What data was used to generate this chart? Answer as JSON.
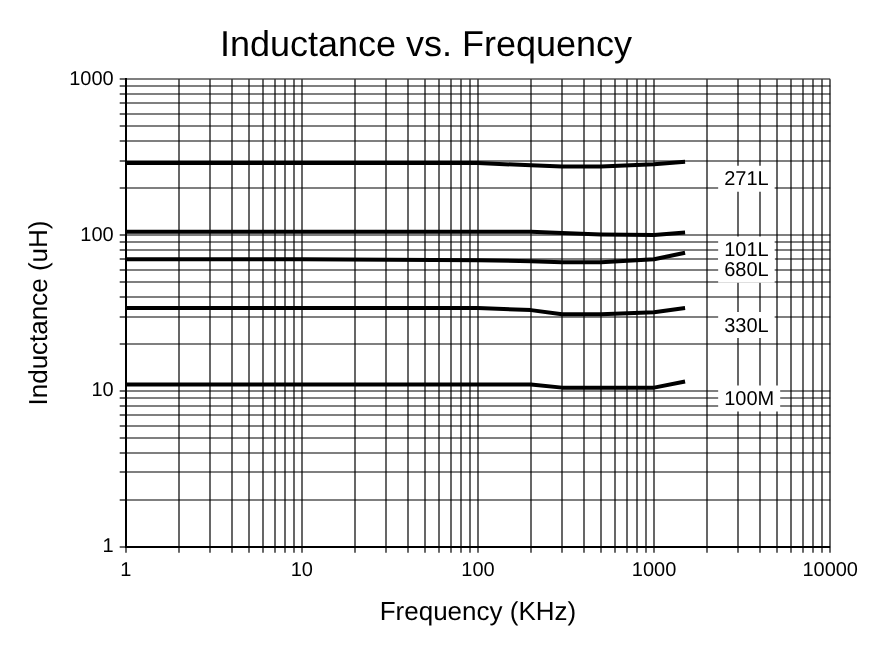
{
  "chart_data": {
    "type": "line",
    "title": "Inductance vs. Frequency",
    "xlabel": "Frequency (KHz)",
    "ylabel": "Inductance (uH)",
    "log": "xy",
    "grid": true,
    "legend": false,
    "marker": "none",
    "line_style": "solid",
    "x": [
      1,
      10,
      100,
      200,
      300,
      500,
      1000,
      1500
    ],
    "xlim": [
      1,
      10000
    ],
    "xticks": [
      1,
      {
        "value": 2,
        "label": null
      },
      {
        "value": 3,
        "label": null
      },
      {
        "value": 4,
        "label": null
      },
      {
        "value": 5,
        "label": null
      },
      {
        "value": 6,
        "label": null
      },
      {
        "value": 7,
        "label": null
      },
      {
        "value": 8,
        "label": null
      },
      {
        "value": 9,
        "label": null
      },
      10,
      {
        "value": 20,
        "label": null
      },
      {
        "value": 30,
        "label": null
      },
      {
        "value": 40,
        "label": null
      },
      {
        "value": 50,
        "label": null
      },
      {
        "value": 60,
        "label": null
      },
      {
        "value": 70,
        "label": null
      },
      {
        "value": 80,
        "label": null
      },
      {
        "value": 90,
        "label": null
      },
      100,
      {
        "value": 200,
        "label": null
      },
      {
        "value": 300,
        "label": null
      },
      {
        "value": 400,
        "label": null
      },
      {
        "value": 500,
        "label": null
      },
      {
        "value": 600,
        "label": null
      },
      {
        "value": 700,
        "label": null
      },
      {
        "value": 800,
        "label": null
      },
      {
        "value": 900,
        "label": null
      },
      1000,
      {
        "value": 2000,
        "label": null
      },
      {
        "value": 3000,
        "label": null
      },
      {
        "value": 4000,
        "label": null
      },
      {
        "value": 5000,
        "label": null
      },
      {
        "value": 6000,
        "label": null
      },
      {
        "value": 7000,
        "label": null
      },
      {
        "value": 8000,
        "label": null
      },
      {
        "value": 9000,
        "label": null
      },
      10000
    ],
    "ylim": [
      1,
      1000
    ],
    "yticks": [
      1,
      {
        "value": 2,
        "label": null
      },
      {
        "value": 3,
        "label": null
      },
      {
        "value": 4,
        "label": null
      },
      {
        "value": 5,
        "label": null
      },
      {
        "value": 6,
        "label": null
      },
      {
        "value": 7,
        "label": null
      },
      {
        "value": 8,
        "label": null
      },
      {
        "value": 9,
        "label": null
      },
      10,
      {
        "value": 20,
        "label": null
      },
      {
        "value": 30,
        "label": null
      },
      {
        "value": 40,
        "label": null
      },
      {
        "value": 50,
        "label": null
      },
      {
        "value": 60,
        "label": null
      },
      {
        "value": 70,
        "label": null
      },
      {
        "value": 80,
        "label": null
      },
      {
        "value": 90,
        "label": null
      },
      100,
      {
        "value": 200,
        "label": null
      },
      {
        "value": 300,
        "label": null
      },
      {
        "value": 400,
        "label": null
      },
      {
        "value": 500,
        "label": null
      },
      {
        "value": 600,
        "label": null
      },
      {
        "value": 700,
        "label": null
      },
      {
        "value": 800,
        "label": null
      },
      {
        "value": 900,
        "label": null
      },
      1000
    ],
    "series": [
      {
        "name": "271L",
        "color": "#000000",
        "values": [
          290,
          290,
          290,
          280,
          275,
          275,
          285,
          295
        ]
      },
      {
        "name": "101L",
        "color": "#000000",
        "values": [
          105,
          105,
          105,
          105,
          103,
          101,
          100,
          104
        ]
      },
      {
        "name": "680L",
        "color": "#000000",
        "values": [
          70,
          70,
          69,
          68,
          67,
          67,
          70,
          77
        ]
      },
      {
        "name": "330L",
        "color": "#000000",
        "values": [
          34,
          34,
          34,
          33,
          31,
          31,
          32,
          34
        ]
      },
      {
        "name": "100M",
        "color": "#000000",
        "values": [
          11,
          11,
          11,
          11,
          10.5,
          10.5,
          10.5,
          11.5
        ]
      }
    ]
  }
}
